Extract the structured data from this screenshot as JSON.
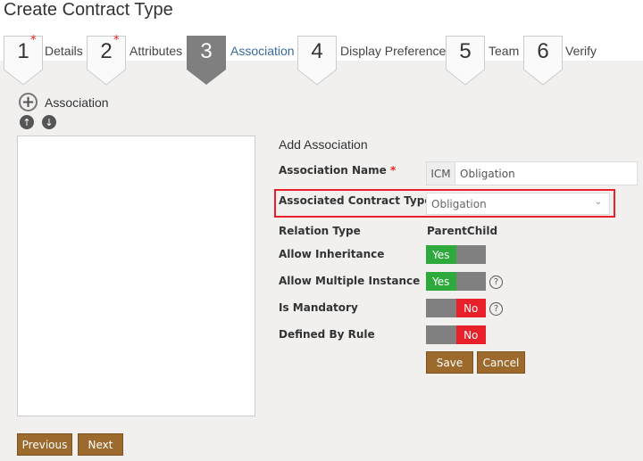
{
  "title": "Create Contract Type",
  "steps": [
    {
      "num": "1",
      "label": "Details",
      "required": "*"
    },
    {
      "num": "2",
      "label": "Attributes",
      "required": "*"
    },
    {
      "num": "3",
      "label": "Association"
    },
    {
      "num": "4",
      "label": "Display Preference"
    },
    {
      "num": "5",
      "label": "Team"
    },
    {
      "num": "6",
      "label": "Verify"
    }
  ],
  "association_header": "Association",
  "form": {
    "heading": "Add Association",
    "name_label": "Association Name",
    "required": "*",
    "name_prefix": "ICM",
    "name_value": "Obligation",
    "type_label": "Associated Contract Type",
    "type_value": "Obligation",
    "relation_label": "Relation Type",
    "relation_value": "ParentChild",
    "inherit_label": "Allow Inheritance",
    "inherit_value": "Yes",
    "multiple_label": "Allow Multiple Instance",
    "multiple_value": "Yes",
    "mandatory_label": "Is Mandatory",
    "mandatory_value": "No",
    "rule_label": "Defined By Rule",
    "rule_value": "No",
    "help": "?",
    "save": "Save",
    "cancel": "Cancel"
  },
  "previous": "Previous",
  "next": "Next",
  "colors": {
    "brand": "#9b6a2c",
    "yes": "#2eaa3c",
    "no": "#e8202a",
    "highlight": "#e8202a"
  }
}
